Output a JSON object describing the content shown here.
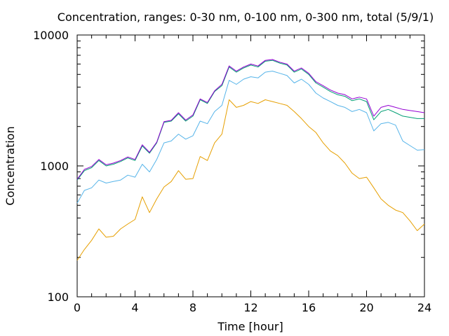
{
  "chart_data": {
    "type": "line",
    "title": "Concentration, ranges: 0-30 nm, 0-100 nm, 0-300 nm, total (5/9/1)",
    "xlabel": "Time [hour]",
    "ylabel": "Concentration",
    "xlim": [
      0,
      24
    ],
    "ylim": [
      100,
      10000
    ],
    "yscale": "log",
    "grid": false,
    "legend": "none",
    "x_ticks": [
      "0",
      "4",
      "8",
      "12",
      "16",
      "20",
      "24"
    ],
    "y_ticks": [
      "100",
      "1000",
      "10000"
    ],
    "x": [
      0,
      0.5,
      1,
      1.5,
      2,
      2.5,
      3,
      3.5,
      4,
      4.5,
      5,
      5.5,
      6,
      6.5,
      7,
      7.5,
      8,
      8.5,
      9,
      9.5,
      10,
      10.5,
      11,
      11.5,
      12,
      12.5,
      13,
      13.5,
      14,
      14.5,
      15,
      15.5,
      16,
      16.5,
      17,
      17.5,
      18,
      18.5,
      19,
      19.5,
      20,
      20.5,
      21,
      21.5,
      22,
      22.5,
      23,
      23.5,
      24
    ],
    "series": [
      {
        "color": "#e69f00",
        "values": [
          190,
          230,
          270,
          330,
          285,
          290,
          330,
          360,
          390,
          580,
          440,
          560,
          690,
          760,
          920,
          790,
          800,
          1180,
          1100,
          1500,
          1750,
          3200,
          2800,
          2900,
          3100,
          3000,
          3200,
          3100,
          3000,
          2900,
          2600,
          2300,
          2000,
          1800,
          1500,
          1300,
          1200,
          1050,
          880,
          800,
          820,
          680,
          560,
          500,
          460,
          440,
          380,
          320,
          360
        ]
      },
      {
        "color": "#56b4e9",
        "values": [
          520,
          650,
          680,
          780,
          740,
          760,
          780,
          850,
          820,
          1030,
          900,
          1120,
          1500,
          1550,
          1750,
          1600,
          1700,
          2200,
          2100,
          2600,
          2900,
          4500,
          4200,
          4600,
          4800,
          4700,
          5200,
          5300,
          5100,
          4900,
          4300,
          4600,
          4200,
          3600,
          3300,
          3100,
          2900,
          2800,
          2600,
          2700,
          2550,
          1850,
          2100,
          2150,
          2050,
          1550,
          1430,
          1320,
          1330
        ]
      },
      {
        "color": "#009e73",
        "values": [
          780,
          920,
          970,
          1100,
          1000,
          1030,
          1080,
          1150,
          1100,
          1420,
          1250,
          1500,
          2150,
          2200,
          2500,
          2200,
          2400,
          3200,
          3000,
          3700,
          4100,
          5700,
          5200,
          5600,
          5900,
          5700,
          6300,
          6400,
          6100,
          5900,
          5200,
          5500,
          5000,
          4300,
          4000,
          3700,
          3500,
          3400,
          3150,
          3250,
          3100,
          2250,
          2600,
          2700,
          2550,
          2400,
          2350,
          2300,
          2300
        ]
      },
      {
        "color": "#9400d3",
        "values": [
          790,
          940,
          990,
          1120,
          1020,
          1050,
          1100,
          1170,
          1120,
          1450,
          1270,
          1520,
          2180,
          2230,
          2550,
          2240,
          2450,
          3250,
          3050,
          3750,
          4200,
          5800,
          5300,
          5700,
          6000,
          5800,
          6400,
          6500,
          6200,
          6000,
          5300,
          5600,
          5100,
          4400,
          4100,
          3800,
          3600,
          3500,
          3250,
          3350,
          3250,
          2400,
          2800,
          2900,
          2800,
          2700,
          2650,
          2600,
          2550
        ]
      }
    ]
  }
}
